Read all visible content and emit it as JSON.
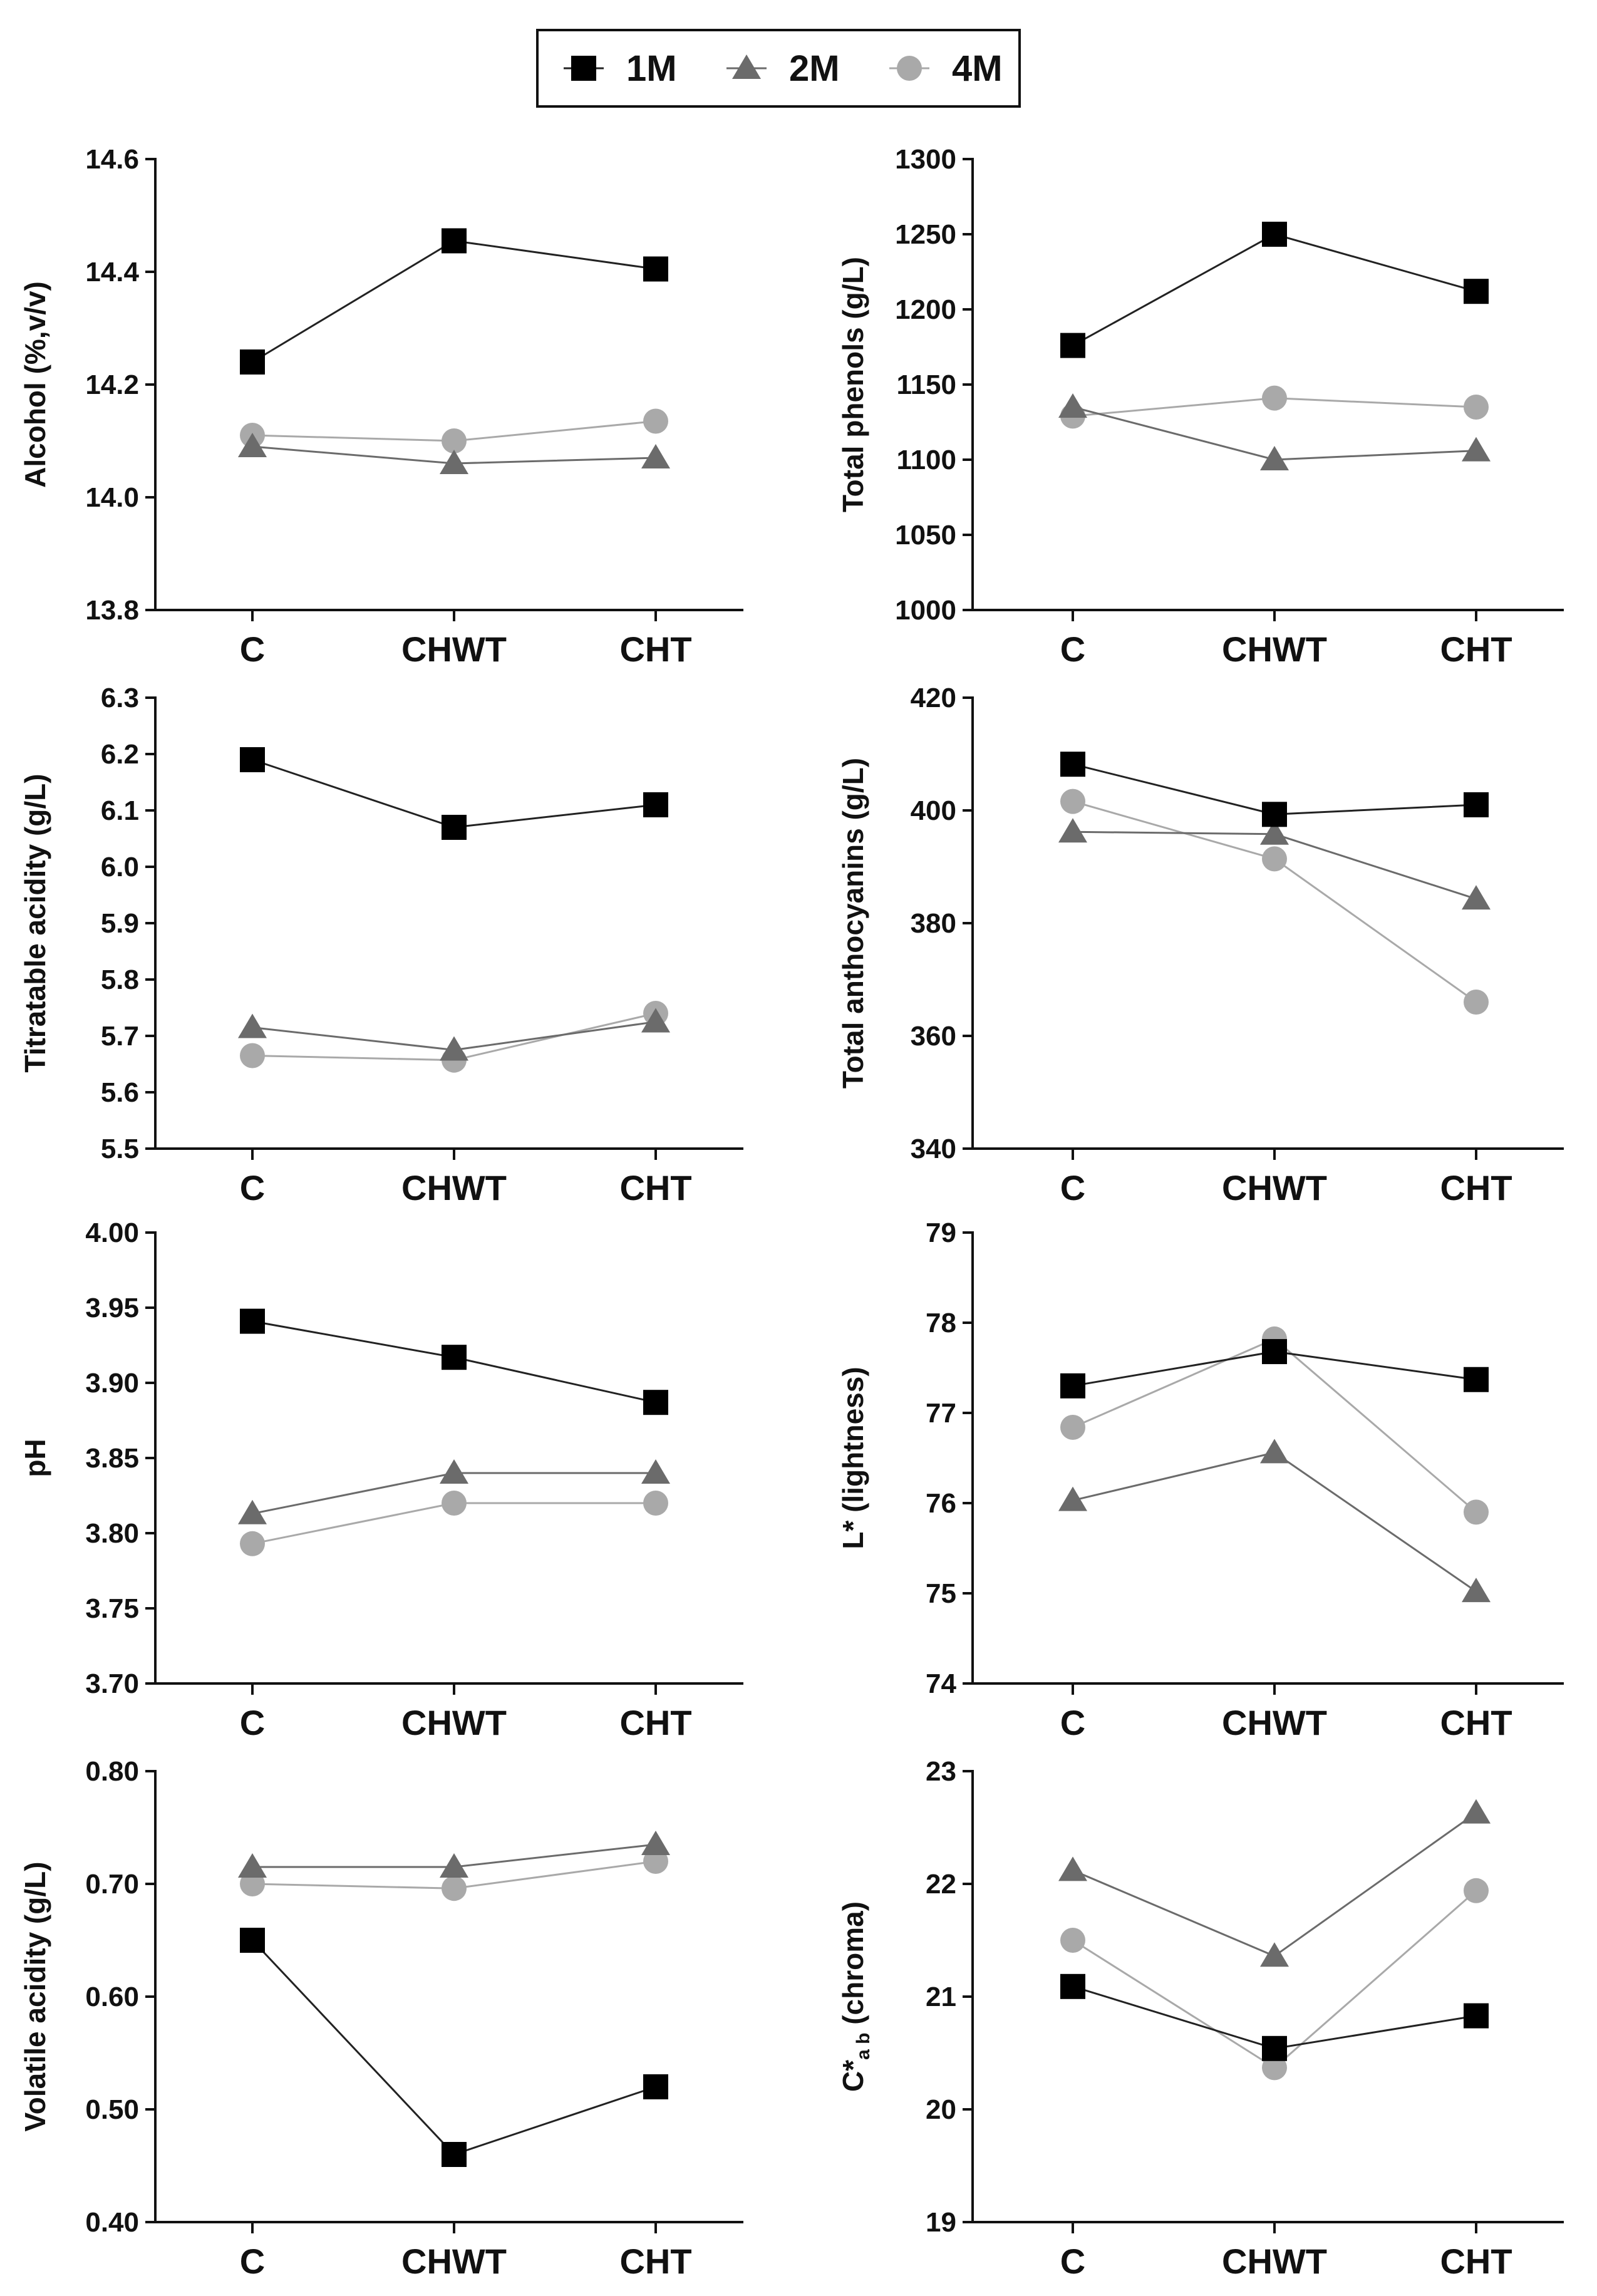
{
  "legend": {
    "items": [
      {
        "name": "1M",
        "marker": "square",
        "color": "#000000",
        "line": "#222222"
      },
      {
        "name": "2M",
        "marker": "triangle",
        "color": "#6b6b6b",
        "line": "#6b6b6b"
      },
      {
        "name": "4M",
        "marker": "circle",
        "color": "#a9a9a9",
        "line": "#a9a9a9"
      }
    ]
  },
  "chart_data": [
    {
      "type": "line",
      "ylabel": "Alcohol (%,v/v)",
      "ylim": [
        13.8,
        14.6
      ],
      "yticks": [
        "13.8",
        "14.0",
        "14.2",
        "14.4",
        "14.6"
      ],
      "categories": [
        "C",
        "CHWT",
        "CHT"
      ],
      "series": [
        {
          "name": "1M",
          "values": [
            14.24,
            14.455,
            14.405
          ]
        },
        {
          "name": "2M",
          "values": [
            14.09,
            14.06,
            14.07
          ]
        },
        {
          "name": "4M",
          "values": [
            14.11,
            14.1,
            14.135
          ]
        }
      ]
    },
    {
      "type": "line",
      "ylabel": "Total phenols (g/L)",
      "ylim": [
        1000,
        1300
      ],
      "yticks": [
        "1000",
        "1050",
        "1100",
        "1150",
        "1200",
        "1250",
        "1300"
      ],
      "categories": [
        "C",
        "CHWT",
        "CHT"
      ],
      "series": [
        {
          "name": "1M",
          "values": [
            1176,
            1250,
            1212
          ]
        },
        {
          "name": "2M",
          "values": [
            1135,
            1100,
            1106
          ]
        },
        {
          "name": "4M",
          "values": [
            1129,
            1141,
            1135
          ]
        }
      ]
    },
    {
      "type": "line",
      "ylabel": "Titratable acidity (g/L)",
      "ylim": [
        5.5,
        6.3
      ],
      "yticks": [
        "5.5",
        "5.6",
        "5.7",
        "5.8",
        "5.9",
        "6.0",
        "6.1",
        "6.2",
        "6.3"
      ],
      "categories": [
        "C",
        "CHWT",
        "CHT"
      ],
      "series": [
        {
          "name": "1M",
          "values": [
            6.19,
            6.07,
            6.11
          ]
        },
        {
          "name": "2M",
          "values": [
            5.715,
            5.675,
            5.725
          ]
        },
        {
          "name": "4M",
          "values": [
            5.665,
            5.657,
            5.74
          ]
        }
      ]
    },
    {
      "type": "line",
      "ylabel": "Total anthocyanins (g/L)",
      "ylim": [
        340,
        420
      ],
      "yticks": [
        "340",
        "360",
        "380",
        "400",
        "420"
      ],
      "categories": [
        "C",
        "CHWT",
        "CHT"
      ],
      "series": [
        {
          "name": "1M",
          "values": [
            408.2,
            399.3,
            401.0
          ]
        },
        {
          "name": "2M",
          "values": [
            396.2,
            395.8,
            384.3
          ]
        },
        {
          "name": "4M",
          "values": [
            401.6,
            391.4,
            366.0
          ]
        }
      ]
    },
    {
      "type": "line",
      "ylabel": "pH",
      "ylim": [
        3.7,
        4.0
      ],
      "yticks": [
        "3.70",
        "3.75",
        "3.80",
        "3.85",
        "3.90",
        "3.95",
        "4.00"
      ],
      "categories": [
        "C",
        "CHWT",
        "CHT"
      ],
      "series": [
        {
          "name": "1M",
          "values": [
            3.941,
            3.917,
            3.887
          ]
        },
        {
          "name": "2M",
          "values": [
            3.813,
            3.84,
            3.84
          ]
        },
        {
          "name": "4M",
          "values": [
            3.793,
            3.82,
            3.82
          ]
        }
      ]
    },
    {
      "type": "line",
      "ylabel": "L* (lightness)",
      "ylim": [
        74,
        79
      ],
      "yticks": [
        "74",
        "75",
        "76",
        "77",
        "78",
        "79"
      ],
      "categories": [
        "C",
        "CHWT",
        "CHT"
      ],
      "series": [
        {
          "name": "1M",
          "values": [
            77.3,
            77.68,
            77.37
          ]
        },
        {
          "name": "2M",
          "values": [
            76.03,
            76.56,
            75.02
          ]
        },
        {
          "name": "4M",
          "values": [
            76.84,
            77.82,
            75.9
          ]
        }
      ]
    },
    {
      "type": "line",
      "ylabel": "Volatile acidity (g/L)",
      "ylim": [
        0.4,
        0.8
      ],
      "yticks": [
        "0.40",
        "0.50",
        "0.60",
        "0.70",
        "0.80"
      ],
      "categories": [
        "C",
        "CHWT",
        "CHT"
      ],
      "series": [
        {
          "name": "1M",
          "values": [
            0.65,
            0.46,
            0.52
          ]
        },
        {
          "name": "2M",
          "values": [
            0.715,
            0.715,
            0.735
          ]
        },
        {
          "name": "4M",
          "values": [
            0.7,
            0.696,
            0.72
          ]
        }
      ]
    },
    {
      "type": "line",
      "ylabel": "C*",
      "ylabel_sub": "a b",
      "ylabel_rest": " (chroma)",
      "ylim": [
        19,
        23
      ],
      "yticks": [
        "19",
        "20",
        "21",
        "22",
        "23"
      ],
      "categories": [
        "C",
        "CHWT",
        "CHT"
      ],
      "series": [
        {
          "name": "1M",
          "values": [
            21.09,
            20.54,
            20.83
          ]
        },
        {
          "name": "2M",
          "values": [
            22.12,
            21.36,
            22.63
          ]
        },
        {
          "name": "4M",
          "values": [
            21.5,
            20.37,
            21.94
          ]
        }
      ]
    }
  ]
}
